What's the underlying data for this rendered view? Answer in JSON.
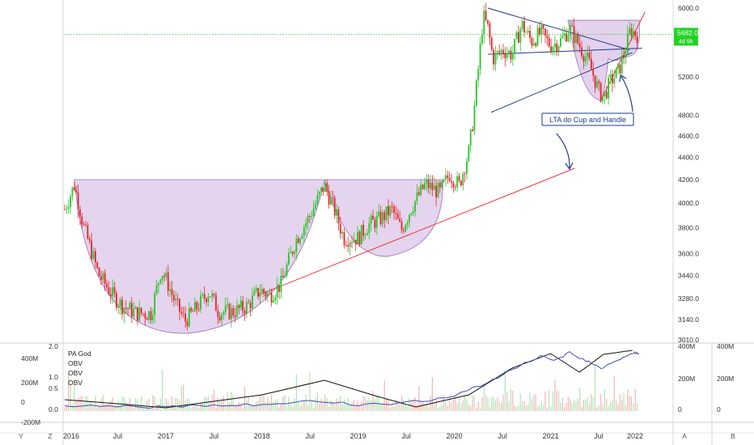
{
  "chart_data": {
    "type": "candlestick",
    "y_scale": "log",
    "price_axis": {
      "ticks": [
        "6000.0",
        "5200.0",
        "4800.0",
        "4600.0",
        "4400.0",
        "4200.0",
        "4000.0",
        "3800.0",
        "3600.0",
        "3440.0",
        "3280.0",
        "3140.0",
        "3010.0"
      ],
      "current_price_label": "5682.0",
      "current_change_label": "4d 9h",
      "current_price": 5682
    },
    "x_axis": {
      "ticks": [
        "2016",
        "Jul",
        "2017",
        "Jul",
        "2018",
        "Jul",
        "2019",
        "Jul",
        "2020",
        "Jul",
        "2021",
        "Jul",
        "2022"
      ]
    },
    "annotations": {
      "lta_label": "LTA do Cup and Handle"
    },
    "indicator_panel": {
      "legend": [
        "PA God",
        "OBV",
        "OBV",
        "OBV"
      ],
      "left_axis_ticks": [
        "2.0",
        "1.0",
        "0.5",
        "0.0"
      ],
      "far_left_ticks": [
        "400M",
        "200M",
        "0",
        "-200M"
      ],
      "right_axis_ticks": [
        "400M",
        "200M",
        "0"
      ],
      "far_right_ticks": [
        "400M",
        "200M",
        "0"
      ]
    },
    "toolbar_letters": [
      "Y",
      "Z",
      "A",
      "B"
    ],
    "colors": {
      "up": "#26c626",
      "down": "#e0262a",
      "cup_fill": "#dcc6e8",
      "trendline": "#e53935",
      "wedge": "#1e3a8a",
      "label_box_border": "#1e3a8a",
      "label_text": "#1e3a8a",
      "price_badge": "#22d322",
      "black_obv": "#111111",
      "blue_obv": "#3f4fb0"
    }
  }
}
